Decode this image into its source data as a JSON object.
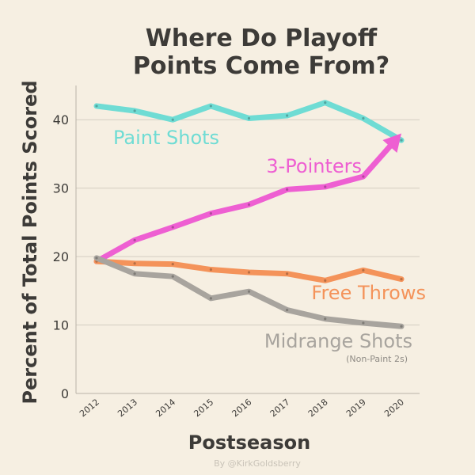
{
  "chart_data": {
    "type": "line",
    "title_lines": [
      "Where Do Playoff",
      "Points Come From?"
    ],
    "xlabel": "Postseason",
    "ylabel": "Percent of Total Points Scored",
    "x": [
      "2012",
      "2013",
      "2014",
      "2015",
      "2016",
      "2017",
      "2018",
      "2019",
      "2020"
    ],
    "ylim": [
      0,
      45
    ],
    "yticks": [
      0,
      10,
      20,
      30,
      40
    ],
    "grid": true,
    "series": [
      {
        "name": "Paint Shots",
        "color": "#6fdcd4",
        "values": [
          42.0,
          41.3,
          40.0,
          42.0,
          40.2,
          40.6,
          42.5,
          40.2,
          37.0
        ],
        "arrow": false
      },
      {
        "name": "3-Pointers",
        "color": "#ee5fd2",
        "values": [
          19.3,
          22.4,
          24.3,
          26.3,
          27.6,
          29.8,
          30.2,
          31.7,
          38.0
        ],
        "arrow": true
      },
      {
        "name": "Free Throws",
        "color": "#f4935a",
        "values": [
          19.3,
          19.0,
          18.9,
          18.1,
          17.7,
          17.5,
          16.5,
          18.0,
          16.7
        ],
        "arrow": false
      },
      {
        "name": "Midrange Shots",
        "subname": "(Non-Paint 2s)",
        "color": "#a8a49e",
        "values": [
          19.8,
          17.5,
          17.1,
          13.9,
          14.9,
          12.2,
          10.9,
          10.3,
          9.8
        ],
        "arrow": false
      }
    ]
  },
  "credit": "By @KirkGoldsberry"
}
